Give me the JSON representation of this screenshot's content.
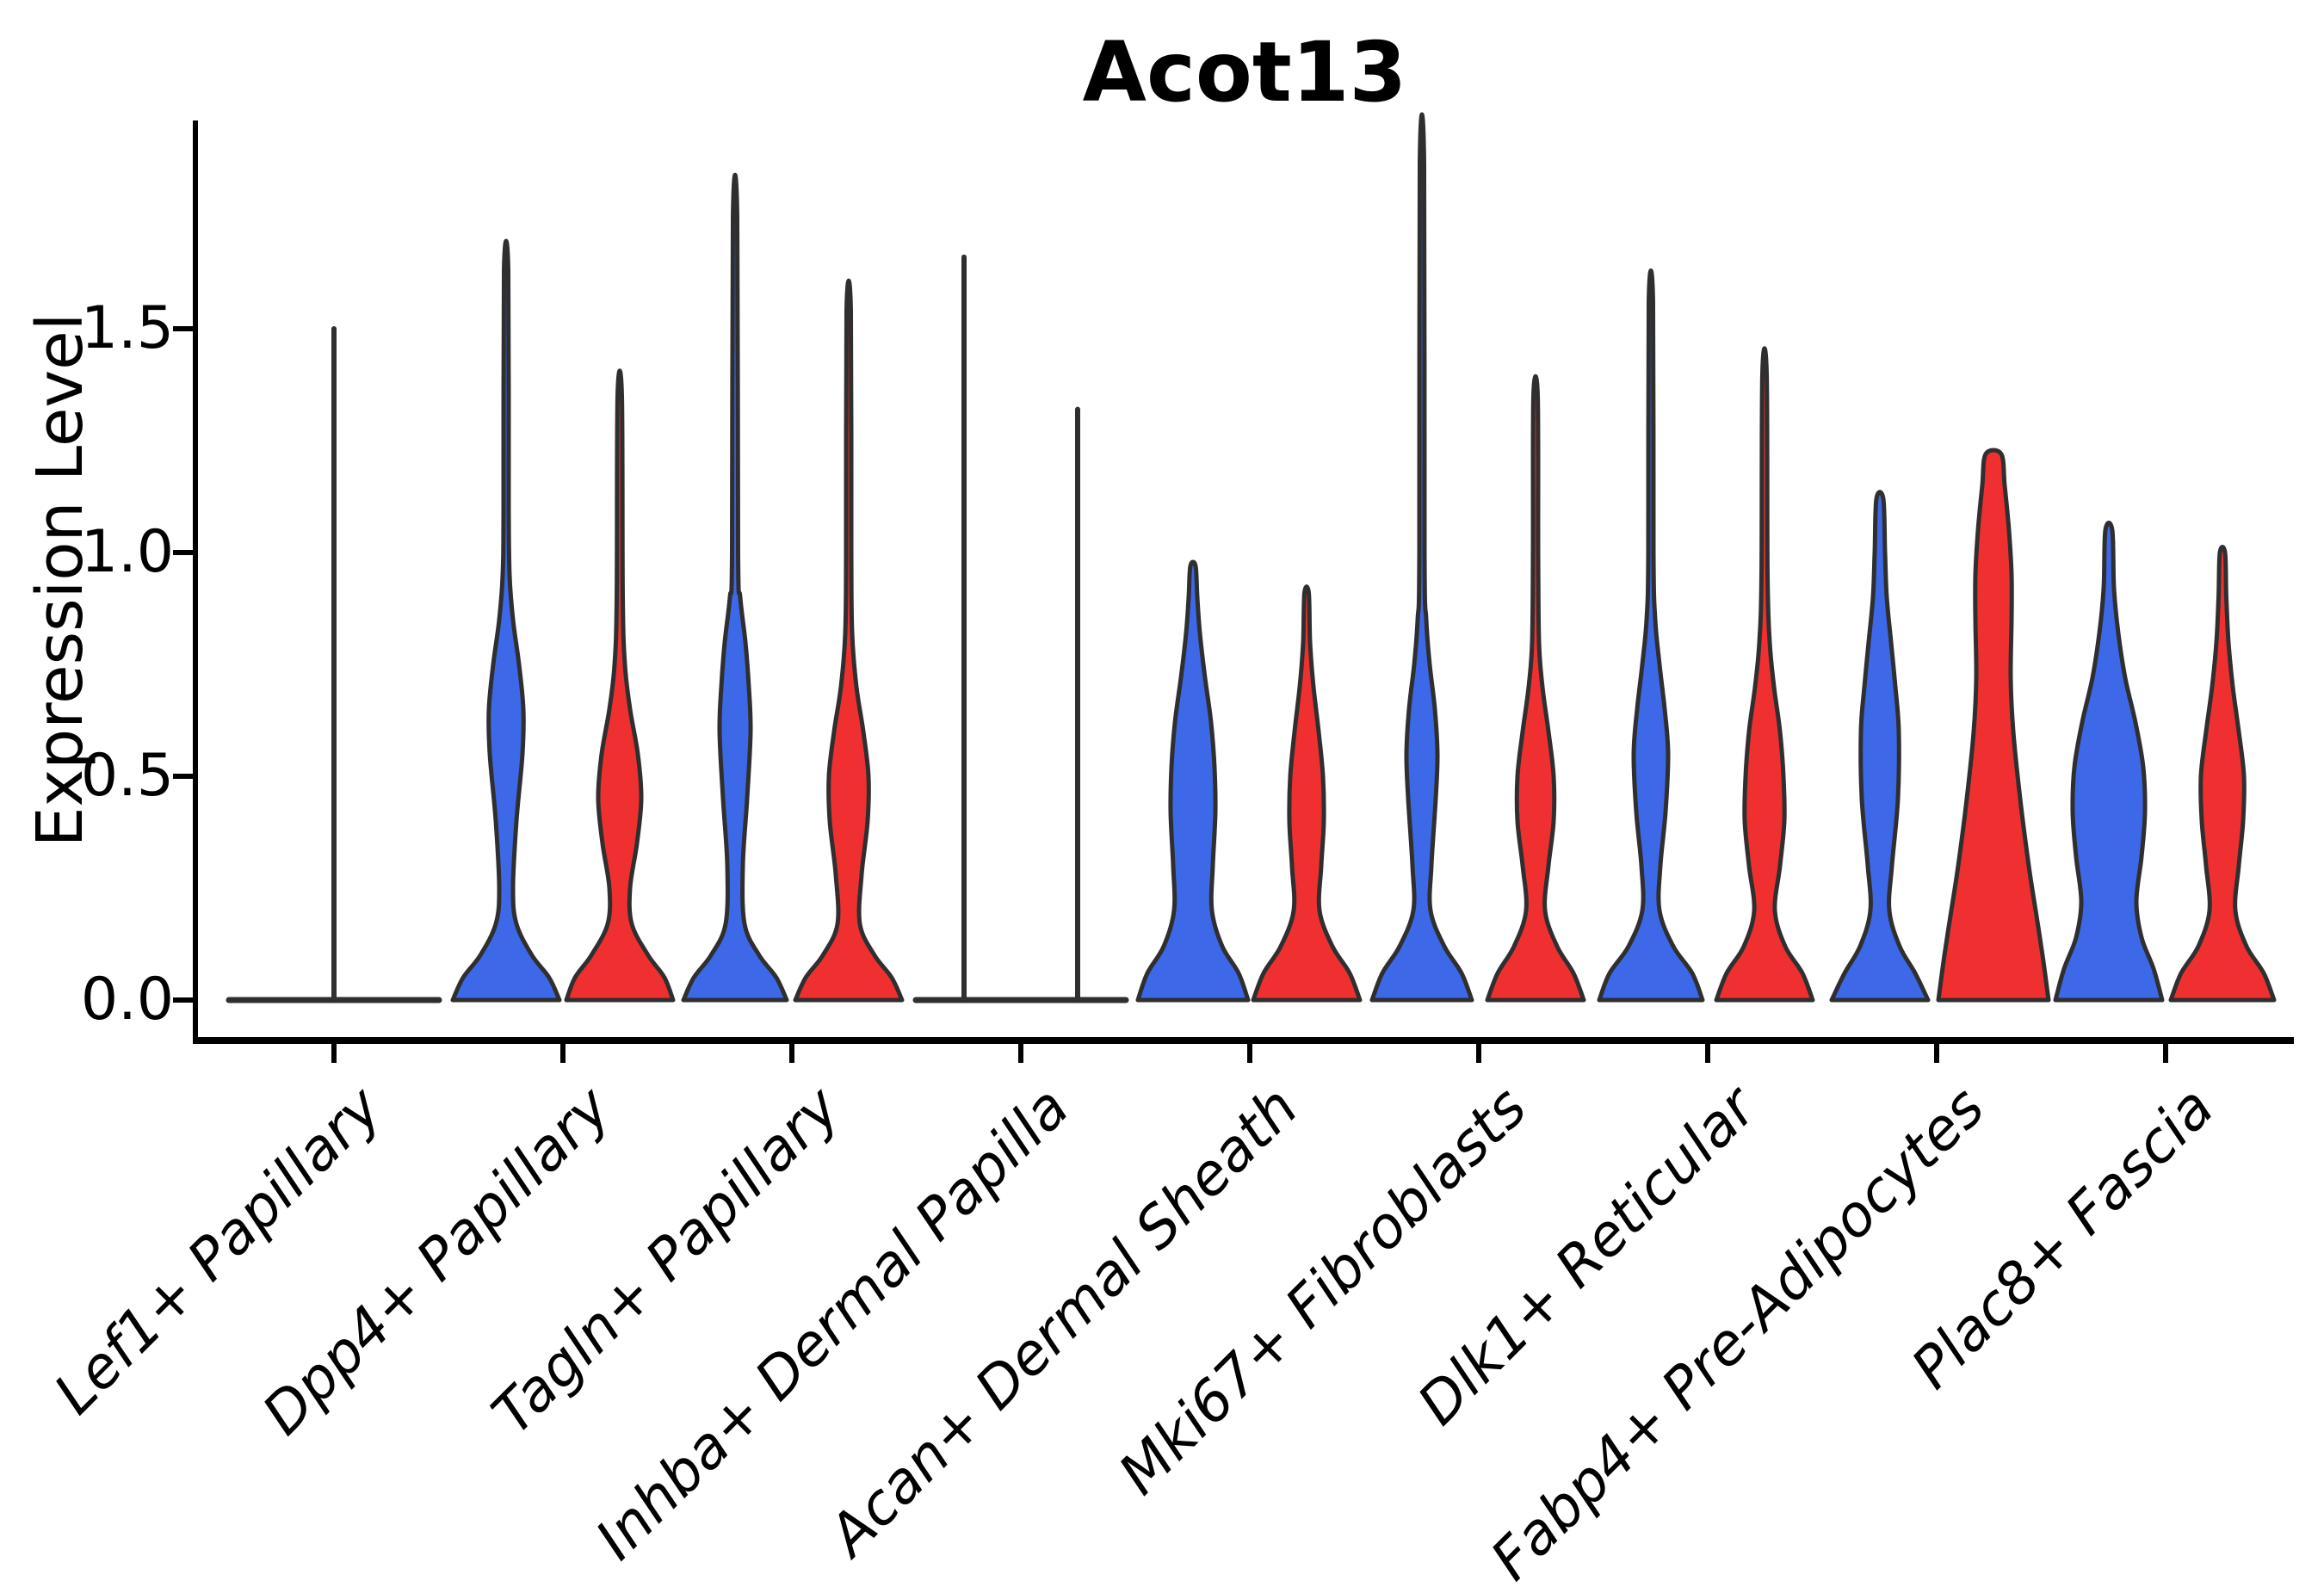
{
  "title": "Acot13",
  "y_axis": {
    "label": "Expression Level",
    "tick_labels": [
      "0.0",
      "0.5",
      "1.0",
      "1.5"
    ],
    "tick_values": [
      0.0,
      0.5,
      1.0,
      1.5
    ]
  },
  "colors": {
    "blue": "#3D68E8",
    "red": "#F03030",
    "outline": "#2F2F2F",
    "axis": "#000000"
  },
  "chart_data": {
    "type": "violin",
    "title": "Acot13",
    "xlabel": "",
    "ylabel": "Expression Level",
    "ylim": [
      0,
      1.95
    ],
    "yticks": [
      0.0,
      0.5,
      1.0,
      1.5
    ],
    "grid": false,
    "legend": "none",
    "series": [
      "blue-left-violin",
      "red-right-violin"
    ],
    "categories": [
      {
        "label": "Lef1+ Papillary",
        "flat": true,
        "spikes": [
          {
            "pos": "center",
            "max": 1.5
          }
        ]
      },
      {
        "label": "Dpp4+ Papillary",
        "violins": [
          {
            "side": "left",
            "max": 1.63,
            "profile": [
              [
                0,
                62
              ],
              [
                0.05,
                50
              ],
              [
                0.1,
                30
              ],
              [
                0.17,
                12
              ],
              [
                0.25,
                8
              ],
              [
                0.4,
                12
              ],
              [
                0.55,
                19
              ],
              [
                0.65,
                20
              ],
              [
                0.75,
                15
              ],
              [
                0.85,
                8
              ],
              [
                0.95,
                4
              ],
              [
                1.1,
                3
              ],
              [
                1.63,
                2.5
              ]
            ]
          },
          {
            "side": "right",
            "max": 1.35,
            "profile": [
              [
                0,
                62
              ],
              [
                0.05,
                52
              ],
              [
                0.1,
                33
              ],
              [
                0.17,
                14
              ],
              [
                0.25,
                12
              ],
              [
                0.35,
                20
              ],
              [
                0.45,
                25
              ],
              [
                0.55,
                21
              ],
              [
                0.65,
                12
              ],
              [
                0.75,
                6
              ],
              [
                0.9,
                3.5
              ],
              [
                1.35,
                2.5
              ]
            ]
          }
        ]
      },
      {
        "label": "Tagln+ Papillary",
        "violins": [
          {
            "side": "left",
            "max": 1.75,
            "profile": [
              [
                0,
                60
              ],
              [
                0.05,
                48
              ],
              [
                0.1,
                28
              ],
              [
                0.17,
                11
              ],
              [
                0.3,
                9
              ],
              [
                0.45,
                14
              ],
              [
                0.6,
                18
              ],
              [
                0.7,
                16
              ],
              [
                0.8,
                12
              ],
              [
                0.9,
                6
              ],
              [
                1.0,
                3.5
              ],
              [
                1.75,
                2.5
              ]
            ]
          },
          {
            "side": "right",
            "max": 1.54,
            "profile": [
              [
                0,
                62
              ],
              [
                0.05,
                50
              ],
              [
                0.1,
                30
              ],
              [
                0.17,
                13
              ],
              [
                0.28,
                15
              ],
              [
                0.4,
                22
              ],
              [
                0.5,
                23
              ],
              [
                0.6,
                17
              ],
              [
                0.7,
                9
              ],
              [
                0.82,
                4
              ],
              [
                1.0,
                3
              ],
              [
                1.54,
                2.5
              ]
            ]
          }
        ]
      },
      {
        "label": "Inhba+ Dermal Papilla",
        "flat": true,
        "spikes": [
          {
            "pos": "left",
            "max": 1.66
          },
          {
            "pos": "right",
            "max": 1.32
          }
        ]
      },
      {
        "label": "Acan+ Dermal Sheath",
        "violins": [
          {
            "side": "left",
            "max": 0.97,
            "profile": [
              [
                0,
                64
              ],
              [
                0.06,
                53
              ],
              [
                0.12,
                34
              ],
              [
                0.2,
                22
              ],
              [
                0.3,
                23
              ],
              [
                0.42,
                26
              ],
              [
                0.52,
                25
              ],
              [
                0.62,
                21
              ],
              [
                0.72,
                14
              ],
              [
                0.82,
                8
              ],
              [
                0.9,
                5
              ],
              [
                0.97,
                3
              ]
            ]
          },
          {
            "side": "right",
            "max": 0.91,
            "profile": [
              [
                0,
                62
              ],
              [
                0.06,
                50
              ],
              [
                0.12,
                30
              ],
              [
                0.2,
                15
              ],
              [
                0.3,
                17
              ],
              [
                0.4,
                20
              ],
              [
                0.5,
                19
              ],
              [
                0.6,
                14
              ],
              [
                0.7,
                8
              ],
              [
                0.8,
                4
              ],
              [
                0.91,
                2.5
              ]
            ]
          }
        ]
      },
      {
        "label": "Mki67+ Fibroblasts",
        "violins": [
          {
            "side": "left",
            "max": 1.87,
            "profile": [
              [
                0,
                58
              ],
              [
                0.06,
                46
              ],
              [
                0.12,
                26
              ],
              [
                0.2,
                10
              ],
              [
                0.3,
                11
              ],
              [
                0.45,
                16
              ],
              [
                0.55,
                18
              ],
              [
                0.65,
                15
              ],
              [
                0.75,
                9
              ],
              [
                0.85,
                5
              ],
              [
                1.0,
                3
              ],
              [
                1.87,
                2.5
              ]
            ]
          },
          {
            "side": "right",
            "max": 1.35,
            "profile": [
              [
                0,
                56
              ],
              [
                0.06,
                44
              ],
              [
                0.12,
                25
              ],
              [
                0.2,
                11
              ],
              [
                0.3,
                15
              ],
              [
                0.4,
                21
              ],
              [
                0.5,
                21
              ],
              [
                0.6,
                15
              ],
              [
                0.7,
                8
              ],
              [
                0.8,
                4
              ],
              [
                1.0,
                3
              ],
              [
                1.35,
                2.5
              ]
            ]
          }
        ]
      },
      {
        "label": "Dlk1+ Reticular",
        "violins": [
          {
            "side": "left",
            "max": 1.56,
            "profile": [
              [
                0,
                60
              ],
              [
                0.06,
                48
              ],
              [
                0.12,
                26
              ],
              [
                0.2,
                10
              ],
              [
                0.3,
                11
              ],
              [
                0.42,
                17
              ],
              [
                0.55,
                20
              ],
              [
                0.65,
                16
              ],
              [
                0.75,
                10
              ],
              [
                0.85,
                5
              ],
              [
                1.0,
                3
              ],
              [
                1.56,
                2.5
              ]
            ]
          },
          {
            "side": "right",
            "max": 1.4,
            "profile": [
              [
                0,
                56
              ],
              [
                0.06,
                44
              ],
              [
                0.12,
                24
              ],
              [
                0.2,
                12
              ],
              [
                0.3,
                18
              ],
              [
                0.4,
                23
              ],
              [
                0.5,
                22
              ],
              [
                0.6,
                18
              ],
              [
                0.7,
                11
              ],
              [
                0.8,
                6
              ],
              [
                0.95,
                3.5
              ],
              [
                1.4,
                2.5
              ]
            ]
          }
        ]
      },
      {
        "label": "Fabp4+ Pre-Adipocytes",
        "violins": [
          {
            "side": "left",
            "max": 1.12,
            "profile": [
              [
                0,
                56
              ],
              [
                0.06,
                41
              ],
              [
                0.12,
                23
              ],
              [
                0.2,
                11
              ],
              [
                0.3,
                14
              ],
              [
                0.45,
                21
              ],
              [
                0.6,
                22
              ],
              [
                0.7,
                18
              ],
              [
                0.8,
                13
              ],
              [
                0.9,
                8
              ],
              [
                1.0,
                6
              ],
              [
                1.12,
                4
              ]
            ]
          },
          {
            "side": "right",
            "max": 1.22,
            "profile": [
              [
                0,
                64
              ],
              [
                0.1,
                57
              ],
              [
                0.2,
                49
              ],
              [
                0.3,
                41
              ],
              [
                0.45,
                31
              ],
              [
                0.6,
                23
              ],
              [
                0.72,
                20
              ],
              [
                0.85,
                21
              ],
              [
                0.95,
                21
              ],
              [
                1.05,
                18
              ],
              [
                1.15,
                13
              ],
              [
                1.22,
                9
              ]
            ]
          }
        ]
      },
      {
        "label": "Plac8+ Fascia",
        "violins": [
          {
            "side": "left",
            "max": 1.05,
            "profile": [
              [
                0,
                62
              ],
              [
                0.07,
                52
              ],
              [
                0.14,
                38
              ],
              [
                0.22,
                32
              ],
              [
                0.32,
                38
              ],
              [
                0.42,
                42
              ],
              [
                0.52,
                40
              ],
              [
                0.62,
                31
              ],
              [
                0.72,
                19
              ],
              [
                0.82,
                11
              ],
              [
                0.92,
                6
              ],
              [
                1.05,
                4
              ]
            ]
          },
          {
            "side": "right",
            "max": 1.0,
            "profile": [
              [
                0,
                60
              ],
              [
                0.06,
                48
              ],
              [
                0.12,
                28
              ],
              [
                0.2,
                15
              ],
              [
                0.3,
                19
              ],
              [
                0.4,
                24
              ],
              [
                0.5,
                25
              ],
              [
                0.6,
                19
              ],
              [
                0.7,
                12
              ],
              [
                0.8,
                7
              ],
              [
                0.9,
                4.5
              ],
              [
                1.0,
                3
              ]
            ]
          }
        ]
      }
    ]
  }
}
